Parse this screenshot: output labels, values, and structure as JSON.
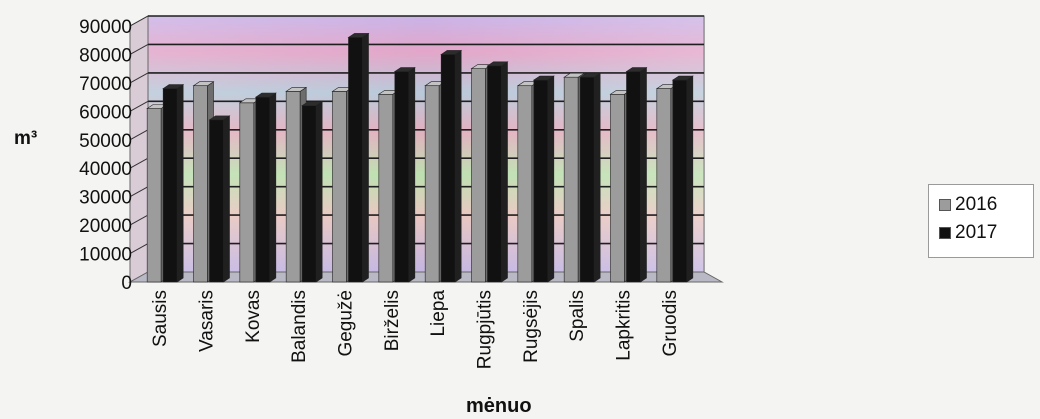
{
  "chart_data": {
    "type": "bar",
    "title": "",
    "xlabel": "mėnuo",
    "ylabel": "m³",
    "ylim": [
      0,
      90000
    ],
    "yticks": [
      0,
      10000,
      20000,
      30000,
      40000,
      50000,
      60000,
      70000,
      80000,
      90000
    ],
    "ytick_labels": [
      "0",
      "10000",
      "20000",
      "30000",
      "40000",
      "50000",
      "60000",
      "70000",
      "80000",
      "90000"
    ],
    "categories": [
      "Sausis",
      "Vasaris",
      "Kovas",
      "Balandis",
      "Gegužė",
      "Birželis",
      "Liepa",
      "Rugpjūtis",
      "Rugsėjis",
      "Spalis",
      "Lapkritis",
      "Gruodis"
    ],
    "series": [
      {
        "name": "2016",
        "color": "#9c9c9c",
        "values": [
          61000,
          69000,
          63000,
          67000,
          67000,
          66000,
          69000,
          75000,
          69000,
          72000,
          66000,
          68000
        ]
      },
      {
        "name": "2017",
        "color": "#111111",
        "values": [
          68000,
          57000,
          65000,
          62000,
          86000,
          74000,
          80000,
          76000,
          71000,
          72000,
          74000,
          71000
        ]
      }
    ],
    "grid": true,
    "legend_position": "right"
  }
}
